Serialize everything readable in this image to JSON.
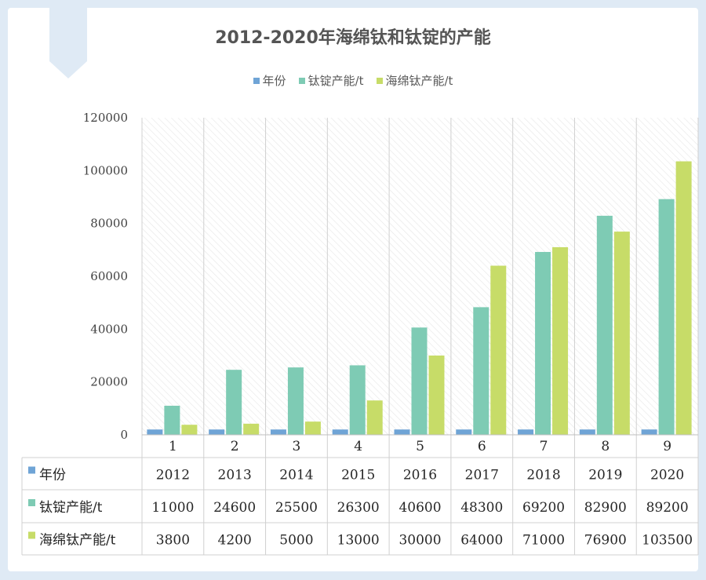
{
  "chart_data": {
    "type": "bar",
    "title": "2012-2020年海绵钛和钛锭的产能",
    "categories": [
      "1",
      "2",
      "3",
      "4",
      "5",
      "6",
      "7",
      "8",
      "9"
    ],
    "ylim": [
      0,
      120000
    ],
    "yticks": [
      "0",
      "20000",
      "40000",
      "60000",
      "80000",
      "100000",
      "120000"
    ],
    "legend_position": "top",
    "grid": true,
    "series": [
      {
        "name": "年份",
        "color": "#6fa4d6",
        "values": [
          2012,
          2013,
          2014,
          2015,
          2016,
          2017,
          2018,
          2019,
          2020
        ],
        "labels": [
          "2012",
          "2013",
          "2014",
          "2015",
          "2016",
          "2017",
          "2018",
          "2019",
          "2020"
        ]
      },
      {
        "name": "钛锭产能/t",
        "color": "#7ecbb4",
        "values": [
          11000,
          24600,
          25500,
          26300,
          40600,
          48300,
          69200,
          82900,
          89200
        ],
        "labels": [
          "11000",
          "24600",
          "25500",
          "26300",
          "40600",
          "48300",
          "69200",
          "82900",
          "89200"
        ]
      },
      {
        "name": "海绵钛产能/t",
        "color": "#c7dc68",
        "values": [
          3800,
          4200,
          5000,
          13000,
          30000,
          64000,
          71000,
          76900,
          103500
        ],
        "labels": [
          "3800",
          "4200",
          "5000",
          "13000",
          "30000",
          "64000",
          "71000",
          "76900",
          "103500"
        ]
      }
    ]
  }
}
